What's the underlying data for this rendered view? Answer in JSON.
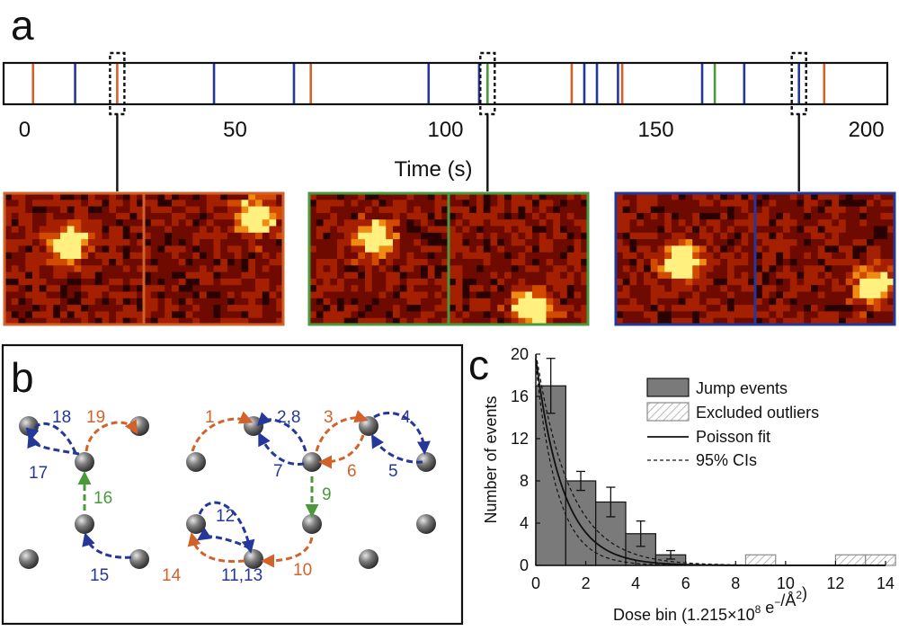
{
  "colors": {
    "orange": "#d2622a",
    "blue": "#26379a",
    "green": "#4a9a3c",
    "bar_fill": "#7a7a7a",
    "atom": "#555555"
  },
  "panel_a": {
    "letter": "a",
    "timeline": {
      "x_ticks": [
        "0",
        "50",
        "100",
        "150",
        "200"
      ],
      "x_tick_values": [
        0,
        50,
        100,
        150,
        200
      ],
      "xlim": [
        -5,
        205
      ],
      "xlabel": "Time (s)",
      "events": [
        {
          "t": 2,
          "color": "orange"
        },
        {
          "t": 12,
          "color": "blue"
        },
        {
          "t": 22,
          "color": "orange"
        },
        {
          "t": 45,
          "color": "blue"
        },
        {
          "t": 64,
          "color": "blue"
        },
        {
          "t": 68,
          "color": "orange"
        },
        {
          "t": 96,
          "color": "blue"
        },
        {
          "t": 108,
          "color": "blue"
        },
        {
          "t": 110,
          "color": "green"
        },
        {
          "t": 130,
          "color": "orange"
        },
        {
          "t": 133,
          "color": "blue"
        },
        {
          "t": 136,
          "color": "blue"
        },
        {
          "t": 141,
          "color": "blue"
        },
        {
          "t": 142,
          "color": "orange"
        },
        {
          "t": 161,
          "color": "blue"
        },
        {
          "t": 164,
          "color": "green"
        },
        {
          "t": 171,
          "color": "blue"
        },
        {
          "t": 184,
          "color": "blue"
        },
        {
          "t": 190,
          "color": "orange"
        }
      ],
      "highlighted_events": [
        22,
        110,
        184
      ]
    },
    "image_pairs": [
      {
        "frame_color": "orange",
        "event_t": 22
      },
      {
        "frame_color": "green",
        "event_t": 110
      },
      {
        "frame_color": "blue",
        "event_t": 184
      }
    ]
  },
  "panel_b": {
    "letter": "b",
    "hop_labels": [
      {
        "text": "18",
        "color": "blue"
      },
      {
        "text": "19",
        "color": "orange"
      },
      {
        "text": "17",
        "color": "blue"
      },
      {
        "text": "16",
        "color": "green"
      },
      {
        "text": "1",
        "color": "orange"
      },
      {
        "text": "2,8",
        "color": "blue"
      },
      {
        "text": "3",
        "color": "orange"
      },
      {
        "text": "4",
        "color": "blue"
      },
      {
        "text": "7",
        "color": "blue"
      },
      {
        "text": "6",
        "color": "orange"
      },
      {
        "text": "5",
        "color": "blue"
      },
      {
        "text": "9",
        "color": "green"
      },
      {
        "text": "12",
        "color": "blue"
      },
      {
        "text": "15",
        "color": "blue"
      },
      {
        "text": "14",
        "color": "orange"
      },
      {
        "text": "11,13",
        "color": "blue"
      },
      {
        "text": "10",
        "color": "orange"
      }
    ]
  },
  "chart_data": {
    "type": "bar",
    "panel_letter": "c",
    "xlabel": "Dose bin (1.215×10",
    "xlabel_sup": "8",
    "xlabel_tail": " e",
    "xlabel_sup2": "−",
    "xlabel_end": "/Å",
    "xlabel_sup3": "2",
    "xlabel_close": ")",
    "ylabel": "Number of events",
    "xlim": [
      0,
      14
    ],
    "ylim": [
      0,
      20
    ],
    "x_ticks": [
      0,
      2,
      4,
      6,
      8,
      10,
      12,
      14
    ],
    "y_ticks": [
      0,
      4,
      8,
      12,
      16,
      20
    ],
    "bin_width": 1.2,
    "series": [
      {
        "name": "Jump events",
        "bin_starts": [
          0,
          1.2,
          2.4,
          3.6,
          4.8
        ],
        "values": [
          17,
          8,
          6,
          3,
          1
        ],
        "errors": [
          2.6,
          0.9,
          1.4,
          1.2,
          0.4
        ]
      },
      {
        "name": "Excluded outliers",
        "bin_starts": [
          8.4,
          12.0,
          13.2
        ],
        "values": [
          1,
          1,
          1
        ]
      },
      {
        "name": "Poisson fit",
        "y0": 19.6,
        "decay": 0.92
      },
      {
        "name": "95% CIs",
        "lower": {
          "y0": 19.0,
          "decay": 1.15
        },
        "upper": {
          "y0": 20.2,
          "decay": 0.74
        }
      }
    ],
    "legend_position": "top-right"
  }
}
